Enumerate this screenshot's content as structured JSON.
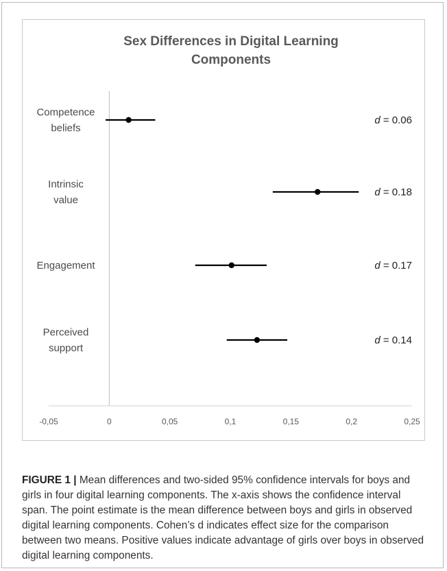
{
  "chart_data": {
    "type": "scatter",
    "title_lines": [
      "Sex Differences in Digital Learning",
      "Components"
    ],
    "xlabel": "",
    "ylabel": "",
    "xlim": [
      -0.05,
      0.25
    ],
    "x_ticks": [
      "-0,05",
      "0",
      "0,05",
      "0,1",
      "0,15",
      "0,2",
      "0,25"
    ],
    "x_tick_values": [
      -0.05,
      0,
      0.05,
      0.1,
      0.15,
      0.2,
      0.25
    ],
    "grid": false,
    "items": [
      {
        "label_lines": [
          "Competence",
          "beliefs"
        ],
        "estimate": 0.016,
        "ci_low": -0.003,
        "ci_high": 0.038,
        "effect_prefix": "d",
        "effect_text": " = 0.06"
      },
      {
        "label_lines": [
          "Intrinsic",
          "value"
        ],
        "estimate": 0.172,
        "ci_low": 0.135,
        "ci_high": 0.206,
        "effect_prefix": "d",
        "effect_text": " = 0.18"
      },
      {
        "label_lines": [
          "Engagement"
        ],
        "estimate": 0.101,
        "ci_low": 0.071,
        "ci_high": 0.13,
        "effect_prefix": "d",
        "effect_text": " = 0.17"
      },
      {
        "label_lines": [
          "Perceived",
          "support"
        ],
        "estimate": 0.122,
        "ci_low": 0.097,
        "ci_high": 0.147,
        "effect_prefix": "d",
        "effect_text": " = 0.14"
      }
    ]
  },
  "caption": {
    "label": "FIGURE 1 |",
    "text": " Mean differences and two-sided 95% confidence intervals for boys and girls in four digital learning components. The x-axis shows the confidence interval span. The point estimate is the mean difference between boys and girls in observed digital learning components. Cohen’s d indicates effect size for the comparison between two means. Positive values indicate advantage of girls over boys in observed digital learning components."
  }
}
